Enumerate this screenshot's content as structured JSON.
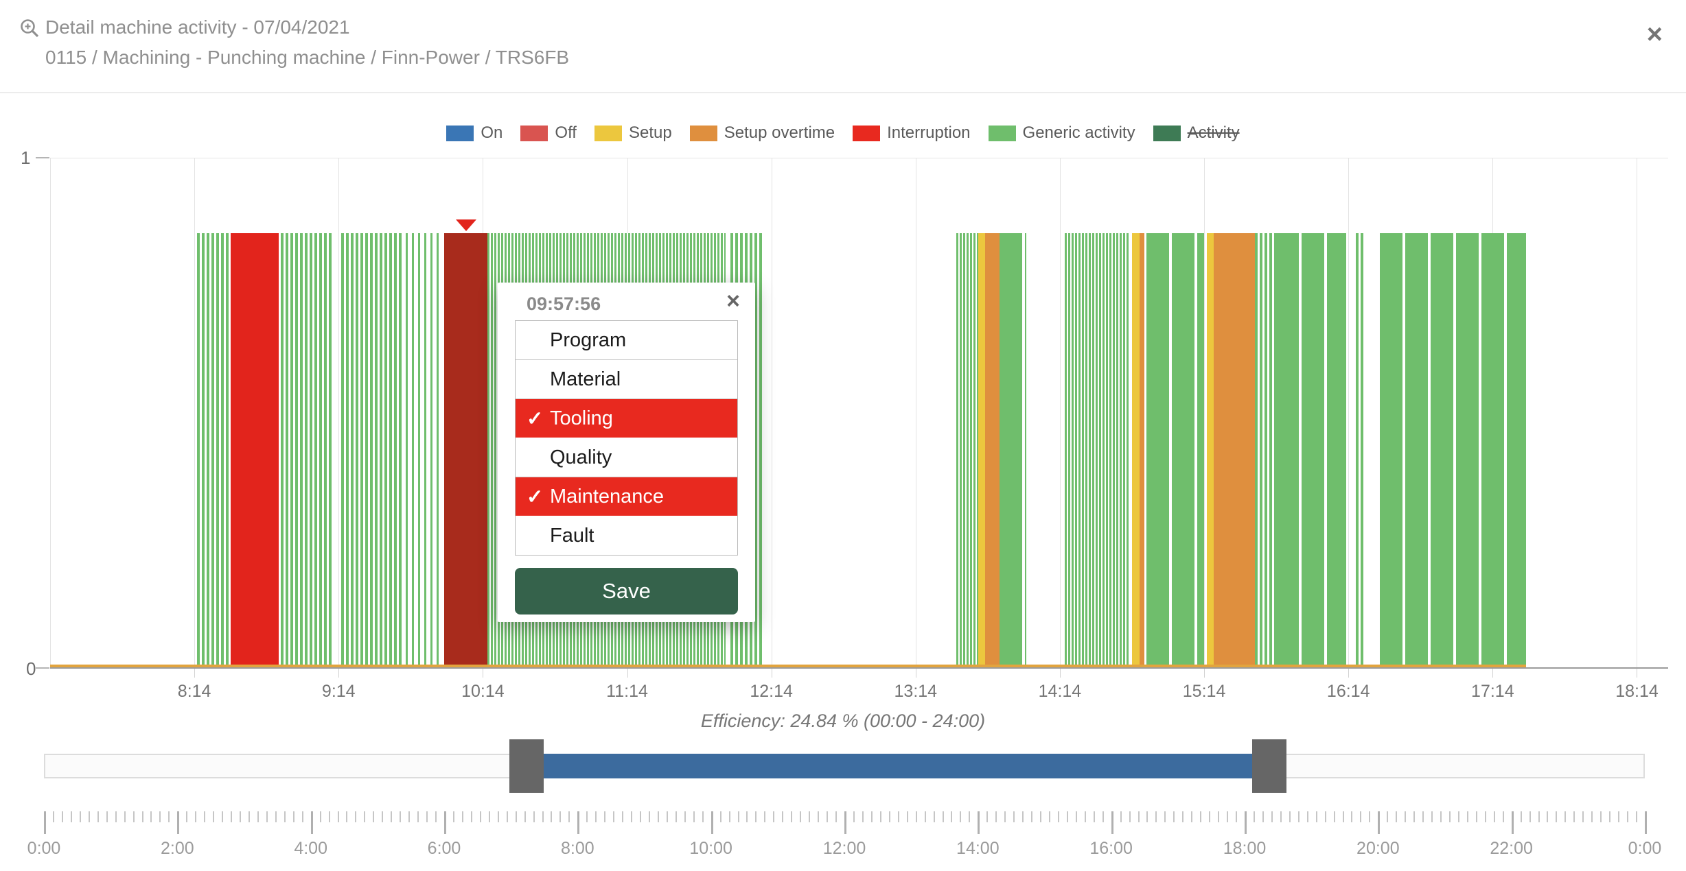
{
  "header": {
    "title": "Detail machine activity - 07/04/2021",
    "subtitle": "0115 / Machining - Punching machine / Finn-Power / TRS6FB",
    "close_label": "×"
  },
  "legend": [
    {
      "label": "On",
      "color": "#3a76b5",
      "struck": false
    },
    {
      "label": "Off",
      "color": "#d95450",
      "struck": false
    },
    {
      "label": "Setup",
      "color": "#ecc73e",
      "struck": false
    },
    {
      "label": "Setup overtime",
      "color": "#df8f3e",
      "struck": false
    },
    {
      "label": "Interruption",
      "color": "#e8291f",
      "struck": false
    },
    {
      "label": "Generic activity",
      "color": "#6fbe6c",
      "struck": false
    },
    {
      "label": "Activity",
      "color": "#3e7b55",
      "struck": true
    }
  ],
  "chart_data": {
    "type": "bar",
    "title": "Machine activity timeline 07/04/2021",
    "x_domain_minutes": [
      434,
      1107
    ],
    "y_axis": {
      "min": 0,
      "max": 1,
      "tick_labels": [
        "0",
        "1"
      ]
    },
    "bar_value": 0.85,
    "colors": {
      "green": "#6fbe6c",
      "red": "#e2241c",
      "dark_red": "#a82b1c",
      "yellow": "#ecc73e",
      "orange": "#df8f3e",
      "baseline_strip": "#e2a43e",
      "axis": "#9b9b9b",
      "grid": "#e3e3e3",
      "marker": "#e2241c"
    },
    "hour_ticks": [
      {
        "minute": 494,
        "label": "8:14"
      },
      {
        "minute": 554,
        "label": "9:14"
      },
      {
        "minute": 614,
        "label": "10:14"
      },
      {
        "minute": 674,
        "label": "11:14"
      },
      {
        "minute": 734,
        "label": "12:14"
      },
      {
        "minute": 794,
        "label": "13:14"
      },
      {
        "minute": 854,
        "label": "14:14"
      },
      {
        "minute": 914,
        "label": "15:14"
      },
      {
        "minute": 974,
        "label": "16:14"
      },
      {
        "minute": 1034,
        "label": "17:14"
      },
      {
        "minute": 1094,
        "label": "18:14"
      }
    ],
    "segments": [
      {
        "start": 495,
        "end": 509,
        "style": "stripes_med",
        "color": "green",
        "activity": "Generic activity"
      },
      {
        "start": 509,
        "end": 529,
        "style": "solid",
        "color": "red",
        "activity": "Interruption"
      },
      {
        "start": 530,
        "end": 552,
        "style": "stripes_med",
        "color": "green",
        "activity": "Generic activity"
      },
      {
        "start": 555,
        "end": 581,
        "style": "stripes_med",
        "color": "green",
        "activity": "Generic activity"
      },
      {
        "start": 582,
        "end": 597,
        "style": "stripes_sparse",
        "color": "green",
        "activity": "Generic activity"
      },
      {
        "start": 598,
        "end": 616,
        "style": "solid",
        "color": "dark_red",
        "activity": "Interruption (selected)"
      },
      {
        "start": 616,
        "end": 715,
        "style": "stripes_dense",
        "color": "green",
        "activity": "Generic activity"
      },
      {
        "start": 717,
        "end": 731,
        "style": "stripes_med",
        "color": "green",
        "activity": "Generic activity"
      },
      {
        "start": 811,
        "end": 820,
        "style": "stripes_dense",
        "color": "green",
        "activity": "Generic activity"
      },
      {
        "start": 820,
        "end": 823,
        "style": "solid",
        "color": "yellow",
        "activity": "Setup"
      },
      {
        "start": 823,
        "end": 829,
        "style": "solid",
        "color": "orange",
        "activity": "Setup overtime"
      },
      {
        "start": 829,
        "end": 840,
        "style": "blocks",
        "color": "green",
        "activity": "Generic activity"
      },
      {
        "start": 856,
        "end": 883,
        "style": "stripes_dense",
        "color": "green",
        "activity": "Generic activity"
      },
      {
        "start": 884,
        "end": 887,
        "style": "solid",
        "color": "yellow",
        "activity": "Setup"
      },
      {
        "start": 887,
        "end": 889,
        "style": "solid",
        "color": "orange",
        "activity": "Setup overtime"
      },
      {
        "start": 890,
        "end": 914,
        "style": "blocks",
        "color": "green",
        "activity": "Generic activity"
      },
      {
        "start": 915,
        "end": 918,
        "style": "solid",
        "color": "yellow",
        "activity": "Setup"
      },
      {
        "start": 918,
        "end": 935,
        "style": "solid",
        "color": "orange",
        "activity": "Setup overtime"
      },
      {
        "start": 935,
        "end": 944,
        "style": "stripes_med",
        "color": "green",
        "activity": "Generic activity"
      },
      {
        "start": 944,
        "end": 973,
        "style": "blocks",
        "color": "green",
        "activity": "Generic activity"
      },
      {
        "start": 977,
        "end": 981,
        "style": "stripes_med",
        "color": "green",
        "activity": "Generic activity"
      },
      {
        "start": 987,
        "end": 1048,
        "style": "blocks",
        "color": "green",
        "activity": "Generic activity"
      }
    ],
    "baseline_strip": {
      "start": 434,
      "end": 1048
    },
    "marker": {
      "minute": 607
    },
    "efficiency_label": "Efficiency: 24.84 % (00:00 - 24:00)"
  },
  "popup": {
    "time": "09:57:56",
    "close_label": "×",
    "check_glyph": "✓",
    "options": [
      {
        "label": "Program",
        "selected": false
      },
      {
        "label": "Material",
        "selected": false
      },
      {
        "label": "Tooling",
        "selected": true
      },
      {
        "label": "Quality",
        "selected": false
      },
      {
        "label": "Maintenance",
        "selected": true
      },
      {
        "label": "Fault",
        "selected": false
      }
    ],
    "save_label": "Save"
  },
  "range_slider": {
    "domain_minutes": [
      0,
      1440
    ],
    "selected_start_minute": 434,
    "selected_end_minute": 1102
  },
  "ruler": {
    "domain_minutes": [
      0,
      1440
    ],
    "minor_step_minutes": 8,
    "major_step_minutes": 120,
    "major_labels": [
      "0:00",
      "2:00",
      "4:00",
      "6:00",
      "8:00",
      "10:00",
      "12:00",
      "14:00",
      "16:00",
      "18:00",
      "20:00",
      "22:00",
      "0:00"
    ]
  }
}
